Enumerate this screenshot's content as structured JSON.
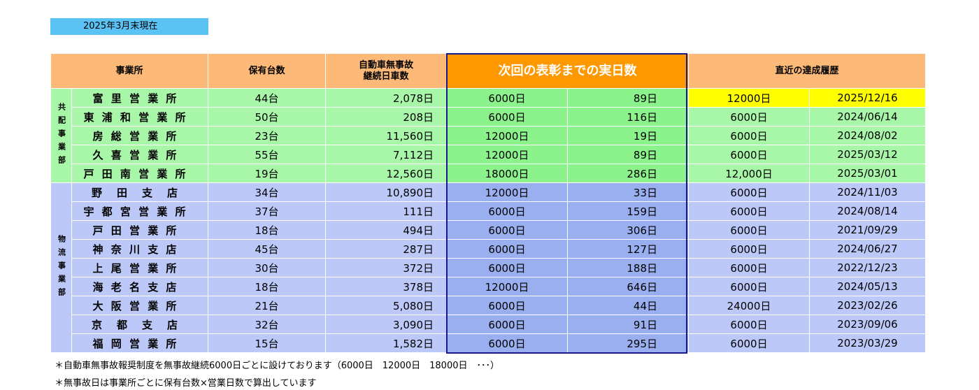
{
  "as_of": "2025年3月末現在",
  "headers": {
    "office": "事業所",
    "vehicles": "保有台数",
    "days_line1": "自動車無事故",
    "days_line2": "継続日車数",
    "next": "次回の表彰までの実日数",
    "recent": "直近の達成履歴"
  },
  "groups": [
    {
      "division": "共配事業部",
      "color": "#a8f6a8",
      "rows": [
        {
          "name": "富 里 営 業 所",
          "vehicles": "44台",
          "days": "2,078日",
          "target": "6000日",
          "remaining": "89日",
          "recent_award": "12000日",
          "recent_date": "2025/12/16",
          "highlight": true
        },
        {
          "name": "東 浦 和 営 業 所",
          "vehicles": "50台",
          "days": "208日",
          "target": "6000日",
          "remaining": "116日",
          "recent_award": "6000日",
          "recent_date": "2024/06/14"
        },
        {
          "name": "房 総 営 業 所",
          "vehicles": "23台",
          "days": "11,560日",
          "target": "12000日",
          "remaining": "19日",
          "recent_award": "6000日",
          "recent_date": "2024/08/02"
        },
        {
          "name": "久 喜 営 業 所",
          "vehicles": "55台",
          "days": "7,112日",
          "target": "12000日",
          "remaining": "89日",
          "recent_award": "6000日",
          "recent_date": "2025/03/12"
        },
        {
          "name": "戸 田 南 営 業 所",
          "vehicles": "19台",
          "days": "12,560日",
          "target": "18000日",
          "remaining": "286日",
          "recent_award": "12,000日",
          "recent_date": "2025/03/01"
        }
      ]
    },
    {
      "division": "物流事業部",
      "color": "#bbc8f8",
      "rows": [
        {
          "name": "野　田　支　店",
          "vehicles": "34台",
          "days": "10,890日",
          "target": "12000日",
          "remaining": "33日",
          "recent_award": "6000日",
          "recent_date": "2024/11/03"
        },
        {
          "name": "宇 都 宮 営 業 所",
          "vehicles": "37台",
          "days": "111日",
          "target": "6000日",
          "remaining": "159日",
          "recent_award": "6000日",
          "recent_date": "2024/08/14"
        },
        {
          "name": "戸 田 営 業 所",
          "vehicles": "18台",
          "days": "494日",
          "target": "6000日",
          "remaining": "306日",
          "recent_award": "6000日",
          "recent_date": "2021/09/29"
        },
        {
          "name": "神 奈 川 支 店",
          "vehicles": "45台",
          "days": "287日",
          "target": "6000日",
          "remaining": "127日",
          "recent_award": "6000日",
          "recent_date": "2024/06/27"
        },
        {
          "name": "上 尾 営 業 所",
          "vehicles": "30台",
          "days": "372日",
          "target": "6000日",
          "remaining": "188日",
          "recent_award": "6000日",
          "recent_date": "2022/12/23"
        },
        {
          "name": "海 老 名 支 店",
          "vehicles": "18台",
          "days": "378日",
          "target": "12000日",
          "remaining": "646日",
          "recent_award": "6000日",
          "recent_date": "2024/05/13"
        },
        {
          "name": "大 阪 営 業 所",
          "vehicles": "21台",
          "days": "5,080日",
          "target": "6000日",
          "remaining": "44日",
          "recent_award": "24000日",
          "recent_date": "2023/02/26"
        },
        {
          "name": "京　都　支　店",
          "vehicles": "32台",
          "days": "3,090日",
          "target": "6000日",
          "remaining": "91日",
          "recent_award": "6000日",
          "recent_date": "2023/09/06"
        },
        {
          "name": "福 岡 営 業 所",
          "vehicles": "15台",
          "days": "1,582日",
          "target": "6000日",
          "remaining": "295日",
          "recent_award": "6000日",
          "recent_date": "2023/03/29"
        }
      ]
    }
  ],
  "notes": [
    "＊自動車無事故報奨制度を無事故継続6000日ごとに設けております（6000日　12000日　18000日　･･･）",
    "＊無事故日は事業所ごとに保有台数×営業日数で算出しています"
  ]
}
